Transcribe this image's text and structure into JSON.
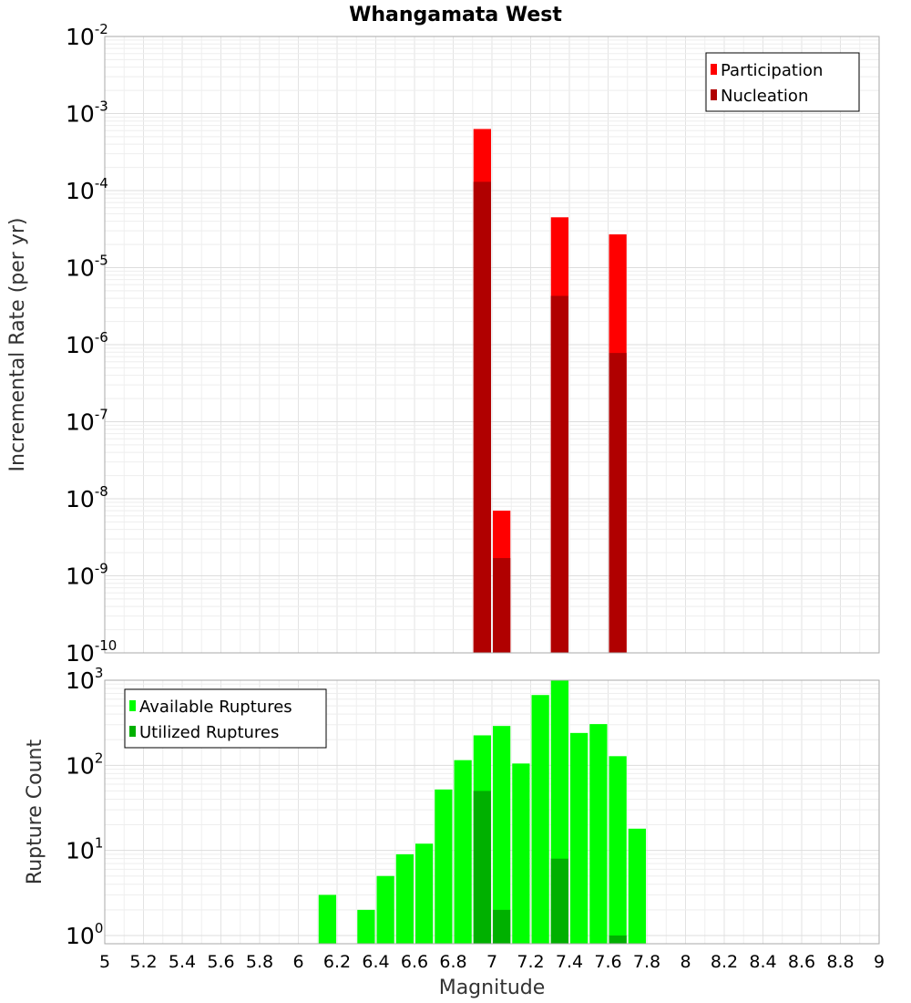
{
  "title": "Whangamata West",
  "chart_data": [
    {
      "type": "bar",
      "title": "Whangamata West",
      "xlabel": "",
      "ylabel": "Incremental Rate (per yr)",
      "yscale": "log",
      "xlim": [
        5,
        9
      ],
      "ylim": [
        1e-10,
        0.01
      ],
      "grid": true,
      "legend_position": "top-right",
      "bar_width": 0.1,
      "series": [
        {
          "name": "Participation",
          "color": "#ff0000",
          "points": [
            {
              "x": 6.95,
              "y": 0.00063
            },
            {
              "x": 7.05,
              "y": 7e-09
            },
            {
              "x": 7.35,
              "y": 4.5e-05
            },
            {
              "x": 7.65,
              "y": 2.7e-05
            }
          ]
        },
        {
          "name": "Nucleation",
          "color": "#b00000",
          "points": [
            {
              "x": 6.95,
              "y": 0.00013
            },
            {
              "x": 7.05,
              "y": 1.7e-09
            },
            {
              "x": 7.35,
              "y": 4.3e-06
            },
            {
              "x": 7.65,
              "y": 7.8e-07
            }
          ]
        }
      ]
    },
    {
      "type": "bar",
      "title": "",
      "xlabel": "Magnitude",
      "ylabel": "Rupture Count",
      "yscale": "log",
      "xlim": [
        5,
        9
      ],
      "ylim": [
        0.8,
        1000
      ],
      "grid": true,
      "legend_position": "top-left",
      "bar_width": 0.1,
      "x_ticks": [
        "5",
        "5.2",
        "5.4",
        "5.6",
        "5.8",
        "6",
        "6.2",
        "6.4",
        "6.6",
        "6.8",
        "7",
        "7.2",
        "7.4",
        "7.6",
        "7.8",
        "8",
        "8.2",
        "8.4",
        "8.6",
        "8.8",
        "9"
      ],
      "series": [
        {
          "name": "Available Ruptures",
          "color": "#00ff00",
          "points": [
            {
              "x": 6.15,
              "y": 3
            },
            {
              "x": 6.35,
              "y": 2
            },
            {
              "x": 6.45,
              "y": 5
            },
            {
              "x": 6.55,
              "y": 9
            },
            {
              "x": 6.65,
              "y": 12
            },
            {
              "x": 6.75,
              "y": 52
            },
            {
              "x": 6.85,
              "y": 115
            },
            {
              "x": 6.95,
              "y": 225
            },
            {
              "x": 7.05,
              "y": 290
            },
            {
              "x": 7.15,
              "y": 105
            },
            {
              "x": 7.25,
              "y": 670
            },
            {
              "x": 7.35,
              "y": 1000
            },
            {
              "x": 7.45,
              "y": 240
            },
            {
              "x": 7.55,
              "y": 305
            },
            {
              "x": 7.65,
              "y": 128
            },
            {
              "x": 7.75,
              "y": 18
            }
          ]
        },
        {
          "name": "Utilized Ruptures",
          "color": "#00b000",
          "points": [
            {
              "x": 6.95,
              "y": 50
            },
            {
              "x": 7.05,
              "y": 2
            },
            {
              "x": 7.35,
              "y": 8
            },
            {
              "x": 7.65,
              "y": 1
            }
          ]
        }
      ]
    }
  ]
}
